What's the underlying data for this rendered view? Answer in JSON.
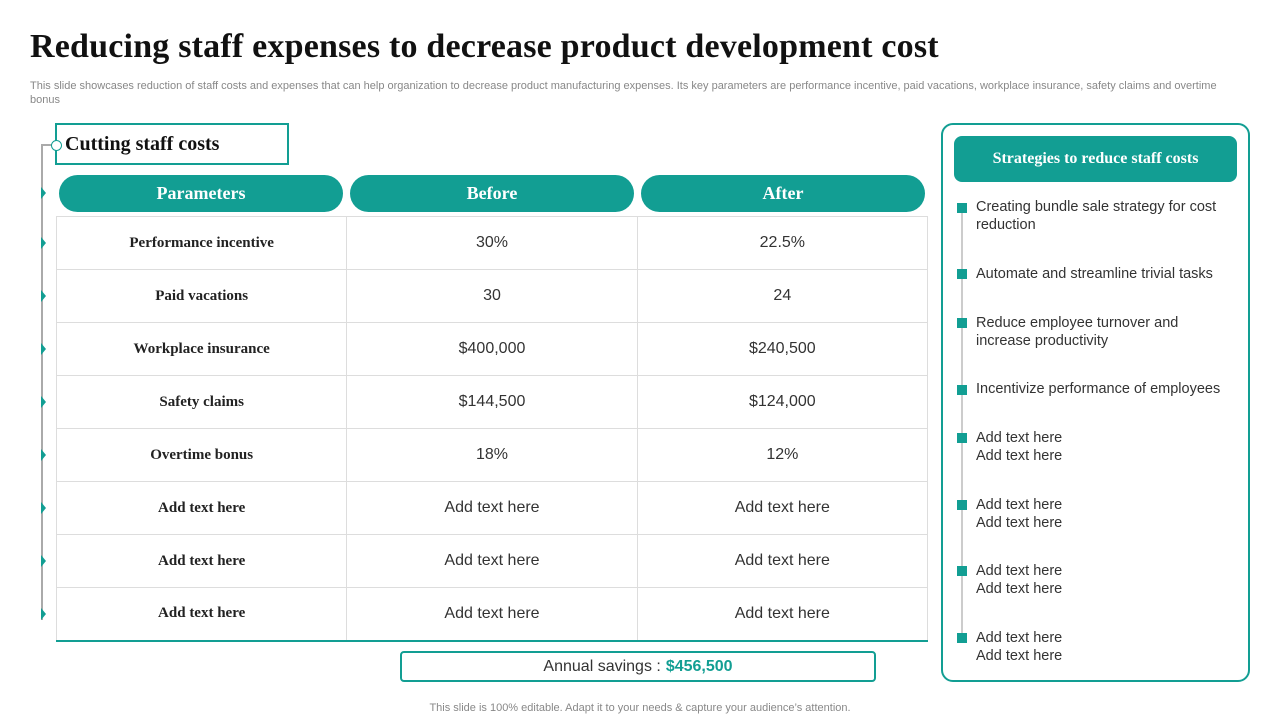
{
  "title": "Reducing staff expenses to decrease product development  cost",
  "subtitle": "This slide showcases reduction of staff costs and expenses that can help organization to decrease product manufacturing expenses. Its key parameters are performance incentive, paid vacations, workplace insurance, safety claims and overtime bonus",
  "section_title": "Cutting staff costs",
  "table": {
    "headers": [
      "Parameters",
      "Before",
      "After"
    ],
    "rows": [
      [
        "Performance  incentive",
        "30%",
        "22.5%"
      ],
      [
        "Paid vacations",
        "30",
        "24"
      ],
      [
        "Workplace  insurance",
        "$400,000",
        "$240,500"
      ],
      [
        "Safety claims",
        "$144,500",
        "$124,000"
      ],
      [
        "Overtime  bonus",
        "18%",
        "12%"
      ],
      [
        "Add text here",
        "Add text here",
        "Add text here"
      ],
      [
        "Add text here",
        "Add text here",
        "Add text here"
      ],
      [
        "Add text here",
        "Add text here",
        "Add text here"
      ]
    ]
  },
  "savings": {
    "label": "Annual savings :",
    "value": "$456,500"
  },
  "strategies": {
    "header": "Strategies to reduce staff costs",
    "items": [
      "Creating bundle sale strategy for cost reduction",
      "Automate and streamline trivial tasks",
      "Reduce employee turnover and increase productivity",
      "Incentivize performance of employees",
      "Add text here\nAdd text here",
      "Add text here\nAdd text here",
      "Add text here\nAdd text here",
      "Add text here\nAdd text here"
    ]
  },
  "footer": "This slide is 100% editable. Adapt it to your needs & capture your audience’s attention.",
  "colors": {
    "accent": "#129e93",
    "title": "#111111",
    "muted": "#888888"
  }
}
